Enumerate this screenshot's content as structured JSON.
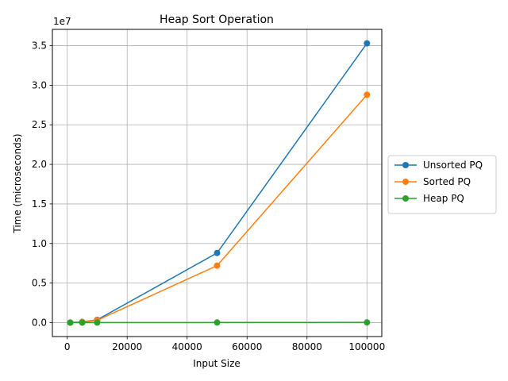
{
  "chart_data": {
    "type": "line",
    "title": "Heap Sort Operation",
    "xlabel": "Input Size",
    "ylabel": "Time (microseconds)",
    "y_offset_label": "1e7",
    "x": [
      1000,
      5000,
      10000,
      50000,
      100000
    ],
    "series": [
      {
        "name": "Unsorted PQ",
        "color": "#1f77b4",
        "values": [
          3500,
          88000,
          350000,
          8800000,
          35300000
        ]
      },
      {
        "name": "Sorted PQ",
        "color": "#ff7f0e",
        "values": [
          2900,
          72000,
          288000,
          7200000,
          28800000
        ]
      },
      {
        "name": "Heap PQ",
        "color": "#2ca02c",
        "values": [
          150,
          900,
          2000,
          12000,
          26000
        ]
      }
    ],
    "xlim": [
      -4950,
      104950
    ],
    "ylim": [
      -1763000,
      37063000
    ],
    "x_ticks": [
      0,
      20000,
      40000,
      60000,
      80000,
      100000
    ],
    "x_tick_labels": [
      "0",
      "20000",
      "40000",
      "60000",
      "80000",
      "100000"
    ],
    "y_ticks": [
      0,
      5000000,
      10000000,
      15000000,
      20000000,
      25000000,
      30000000,
      35000000
    ],
    "y_tick_labels": [
      "0.0",
      "0.5",
      "1.0",
      "1.5",
      "2.0",
      "2.5",
      "3.0",
      "3.5"
    ],
    "grid": true,
    "legend_position": "center-right-outside",
    "marker": "circle"
  }
}
